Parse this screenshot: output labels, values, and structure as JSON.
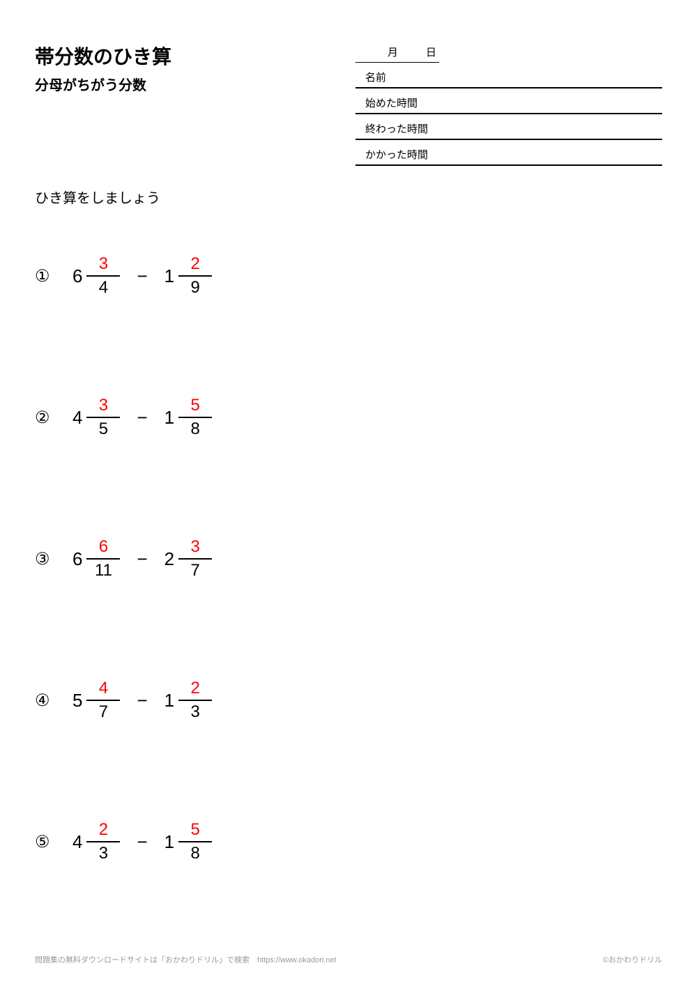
{
  "header": {
    "main_title": "帯分数のひき算",
    "sub_title": "分母がちがう分数"
  },
  "info": {
    "month_label": "月",
    "day_label": "日",
    "name_label": "名前",
    "start_label": "始めた時間",
    "end_label": "終わった時間",
    "duration_label": "かかった時間"
  },
  "instruction": "ひき算をしましょう",
  "styling": {
    "background_color": "#ffffff",
    "text_color": "#000000",
    "numerator_color": "#ff0000",
    "footer_color": "#999999",
    "title_fontsize": 28,
    "subtitle_fontsize": 20,
    "problem_fontsize": 26,
    "fraction_fontsize": 24,
    "info_fontsize": 15,
    "footer_fontsize": 11
  },
  "problems": [
    {
      "num": "①",
      "a_whole": "6",
      "a_num": "3",
      "a_den": "4",
      "op": "−",
      "b_whole": "1",
      "b_num": "2",
      "b_den": "9"
    },
    {
      "num": "②",
      "a_whole": "4",
      "a_num": "3",
      "a_den": "5",
      "op": "−",
      "b_whole": "1",
      "b_num": "5",
      "b_den": "8"
    },
    {
      "num": "③",
      "a_whole": "6",
      "a_num": "6",
      "a_den": "11",
      "op": "−",
      "b_whole": "2",
      "b_num": "3",
      "b_den": "7"
    },
    {
      "num": "④",
      "a_whole": "5",
      "a_num": "4",
      "a_den": "7",
      "op": "−",
      "b_whole": "1",
      "b_num": "2",
      "b_den": "3"
    },
    {
      "num": "⑤",
      "a_whole": "4",
      "a_num": "2",
      "a_den": "3",
      "op": "−",
      "b_whole": "1",
      "b_num": "5",
      "b_den": "8"
    }
  ],
  "footer": {
    "left": "問題集の無料ダウンロードサイトは「おかわりドリル」で検索　https://www.okadori.net",
    "right": "©おかわりドリル"
  }
}
